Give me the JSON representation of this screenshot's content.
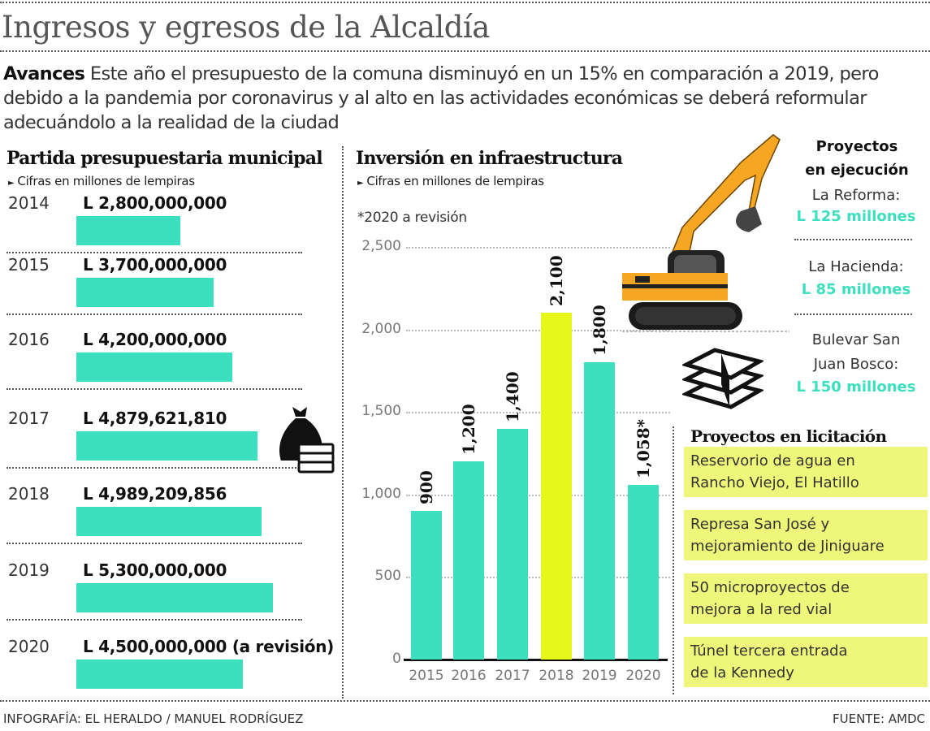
{
  "header": {
    "title": "Ingresos y egresos de la Alcaldía",
    "intro_lead": "Avances",
    "intro_text": " Este año el presupuesto de la comuna disminuyó en un 15% en comparación a 2019, pero debido a la pandemia por coronavirus y al alto en las actividades económicas se deberá reformular adecuándolo a la realidad de la ciudad"
  },
  "colors": {
    "teal": "#3de0be",
    "yellow": "#e6f71c",
    "lightyellow": "#eef77a",
    "orange": "#f5a623"
  },
  "budget": {
    "title": "Partida presupuestaria municipal",
    "subtitle": "Cifras en millones de lempiras",
    "rows": [
      {
        "year": "2014",
        "amount": "L 2,800,000,000"
      },
      {
        "year": "2015",
        "amount": "L 3,700,000,000"
      },
      {
        "year": "2016",
        "amount": "L 4,200,000,000"
      },
      {
        "year": "2017",
        "amount": "L 4,879,621,810"
      },
      {
        "year": "2018",
        "amount": "L 4,989,209,856"
      },
      {
        "year": "2019",
        "amount": "L 5,300,000,000"
      },
      {
        "year": "2020",
        "amount": "L 4,500,000,000 (a revisión)"
      }
    ]
  },
  "investment": {
    "title": "Inversión en infraestructura",
    "subtitle": "Cifras en millones de lempiras",
    "note": "*2020 a revisión",
    "yticks": [
      "2,500",
      "2,000",
      "1,500",
      "1,000",
      "500",
      "0"
    ],
    "bars": [
      {
        "year": "2015",
        "label": "900"
      },
      {
        "year": "2016",
        "label": "1,200"
      },
      {
        "year": "2017",
        "label": "1,400"
      },
      {
        "year": "2018",
        "label": "2,100"
      },
      {
        "year": "2019",
        "label": "1,800"
      },
      {
        "year": "2020",
        "label": "1,058*"
      }
    ]
  },
  "execution": {
    "title_line1": "Proyectos",
    "title_line2": "en ejecución",
    "items": [
      {
        "name": "La Reforma:",
        "amount": "L 125 millones"
      },
      {
        "name": "La Hacienda:",
        "amount": "L 85 millones"
      },
      {
        "name_line1": "Bulevar  San",
        "name_line2": "Juan Bosco:",
        "amount": "L 150 millones"
      }
    ]
  },
  "tender": {
    "title": "Proyectos en licitación",
    "items": [
      {
        "line1": "Reservorio de agua en",
        "line2": "Rancho Viejo, El Hatillo"
      },
      {
        "line1": "Represa San José y",
        "line2": "mejoramiento de Jiniguare"
      },
      {
        "line1": "50 microproyectos de",
        "line2": "mejora a la red vial"
      },
      {
        "line1": "Túnel tercera entrada",
        "line2": "de la Kennedy"
      }
    ]
  },
  "footer": {
    "credit": "INFOGRAFÍA: EL HERALDO / MANUEL RODRÍGUEZ",
    "source": "FUENTE: AMDC"
  },
  "chart_data": [
    {
      "type": "bar",
      "orientation": "horizontal",
      "title": "Partida presupuestaria municipal",
      "subtitle": "Cifras en millones de lempiras",
      "categories": [
        "2014",
        "2015",
        "2016",
        "2017",
        "2018",
        "2019",
        "2020"
      ],
      "values": [
        2800000000,
        3700000000,
        4200000000,
        4879621810,
        4989209856,
        5300000000,
        4500000000
      ],
      "annotations": [
        "2020: a revisión"
      ],
      "unit": "Lempiras"
    },
    {
      "type": "bar",
      "title": "Inversión en infraestructura",
      "subtitle": "Cifras en millones de lempiras",
      "categories": [
        "2015",
        "2016",
        "2017",
        "2018",
        "2019",
        "2020"
      ],
      "values": [
        900,
        1200,
        1400,
        2100,
        1800,
        1058
      ],
      "xlabel": "",
      "ylabel": "",
      "ylim": [
        0,
        2500
      ],
      "yticks": [
        0,
        500,
        1000,
        1500,
        2000,
        2500
      ],
      "grid": true,
      "highlight": {
        "2018": "#e6f71c"
      },
      "annotations": [
        "*2020 a revisión"
      ]
    }
  ]
}
